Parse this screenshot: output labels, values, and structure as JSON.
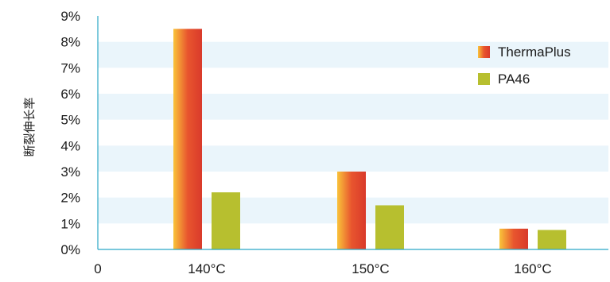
{
  "chart_data": {
    "type": "bar",
    "categories": [
      "140°C",
      "150°C",
      "160°C"
    ],
    "x_origin_label": "0",
    "series": [
      {
        "name": "ThermaPlus",
        "values": [
          8.5,
          3.0,
          0.8
        ],
        "colors": [
          "#f9c33a",
          "#e8552e",
          "#d93a2b"
        ]
      },
      {
        "name": "PA46",
        "values": [
          2.2,
          1.7,
          0.75
        ],
        "color": "#b7bf2f"
      }
    ],
    "ylabel": "断裂伸长率",
    "ylim": [
      0,
      9
    ],
    "yticks": [
      0,
      1,
      2,
      3,
      4,
      5,
      6,
      7,
      8,
      9
    ],
    "ytick_labels": [
      "0%",
      "1%",
      "2%",
      "3%",
      "4%",
      "5%",
      "6%",
      "7%",
      "8%",
      "9%"
    ],
    "grid": "alternating horizontal bands",
    "band_color": "#eaf5fb",
    "axis_color": "#2aa6c6",
    "legend_position": "top-right"
  }
}
